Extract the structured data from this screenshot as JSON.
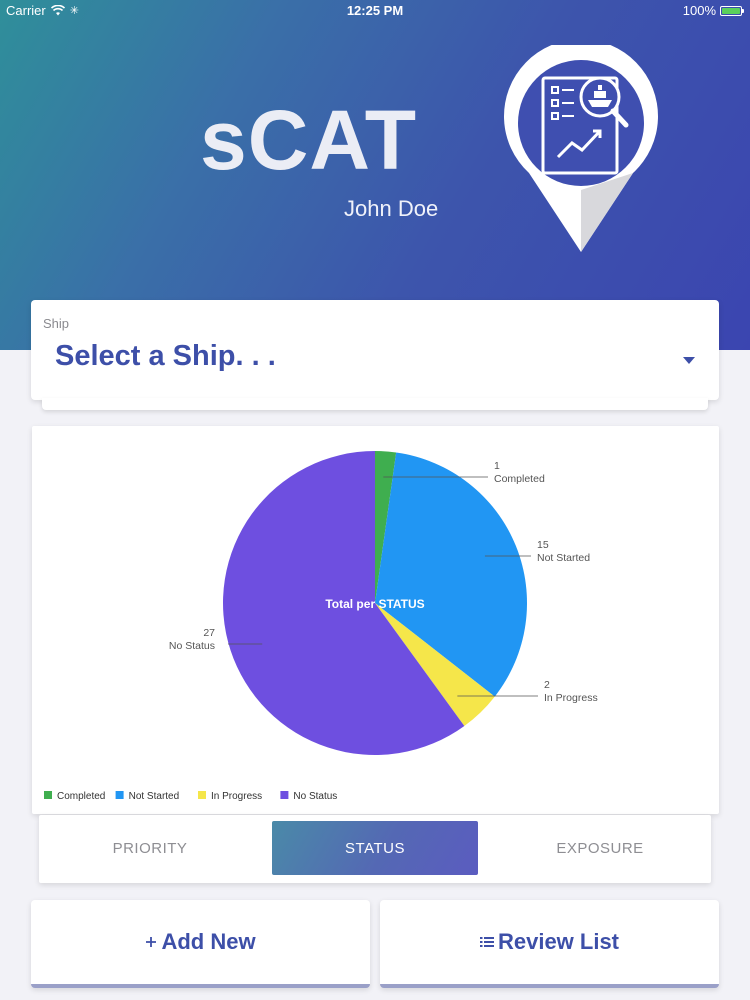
{
  "status_bar": {
    "carrier": "Carrier",
    "time": "12:25 PM",
    "battery": "100%"
  },
  "header": {
    "app_title": "sCAT",
    "user_name": "John Doe",
    "logo_icon": "map-pin-ship-report-icon"
  },
  "ship": {
    "label": "Ship",
    "placeholder": "Select a Ship. . ."
  },
  "chart_data": {
    "type": "pie",
    "center_label": "Total per STATUS",
    "slices": [
      {
        "name": "Completed",
        "value": 1,
        "color": "#3fae4f"
      },
      {
        "name": "Not Started",
        "value": 15,
        "color": "#2196f3"
      },
      {
        "name": "In Progress",
        "value": 2,
        "color": "#f5e64a"
      },
      {
        "name": "No Status",
        "value": 27,
        "color": "#6e4fe0"
      }
    ],
    "legend_position": "bottom-left"
  },
  "tabs": [
    {
      "label": "PRIORITY",
      "active": false
    },
    {
      "label": "STATUS",
      "active": true
    },
    {
      "label": "EXPOSURE",
      "active": false
    }
  ],
  "actions": {
    "add_new": "Add New",
    "review_list": "Review List"
  },
  "colors": {
    "accent": "#3d4fa8",
    "header_start": "#2f8f9a",
    "header_end": "#3b45b0"
  }
}
